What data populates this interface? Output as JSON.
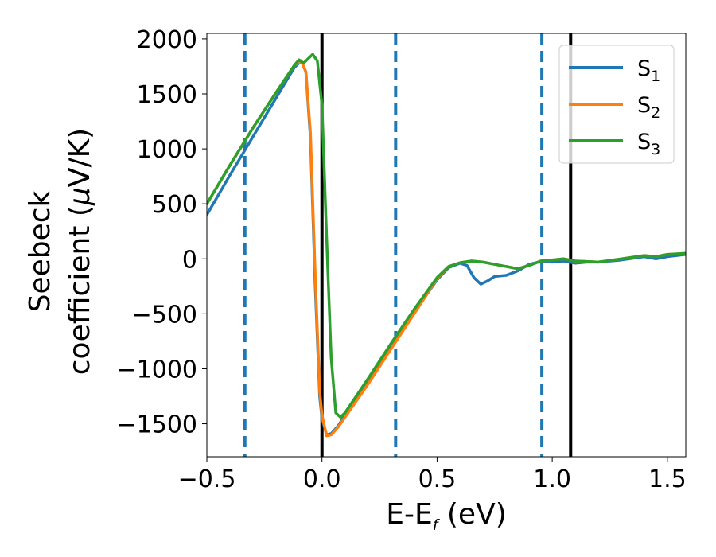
{
  "chart_data": {
    "type": "line",
    "xlabel": {
      "main": "E-E",
      "sub": "f",
      "unit": " (eV)"
    },
    "ylabel": {
      "line1": "Seebeck",
      "line2_prefix": "coefficient  (",
      "mu": "μ",
      "line2_suffix": "V/K)"
    },
    "xlim": [
      -0.5,
      1.58
    ],
    "ylim": [
      -1800,
      2050
    ],
    "xticks": [
      -0.5,
      0.0,
      0.5,
      1.0,
      1.5
    ],
    "xtick_labels": [
      "−0.5",
      "0.0",
      "0.5",
      "1.0",
      "1.5"
    ],
    "yticks": [
      -1500,
      -1000,
      -500,
      0,
      500,
      1000,
      1500,
      2000
    ],
    "ytick_labels": [
      "−1500",
      "−1000",
      "−500",
      "0",
      "500",
      "1000",
      "1500",
      "2000"
    ],
    "legend": {
      "placement": "top-right"
    },
    "vlines": [
      {
        "x": -0.335,
        "style": "dashed",
        "color": "#1f77b4"
      },
      {
        "x": 0.0,
        "style": "solid",
        "color": "#000000"
      },
      {
        "x": 0.32,
        "style": "dashed",
        "color": "#1f77b4"
      },
      {
        "x": 0.955,
        "style": "dashed",
        "color": "#1f77b4"
      },
      {
        "x": 1.08,
        "style": "solid",
        "color": "#000000"
      }
    ],
    "series": [
      {
        "name": "S",
        "sub": "1",
        "color": "#1f77b4",
        "points": [
          [
            -0.5,
            400
          ],
          [
            -0.4,
            760
          ],
          [
            -0.3,
            1110
          ],
          [
            -0.2,
            1460
          ],
          [
            -0.12,
            1740
          ],
          [
            -0.09,
            1800
          ],
          [
            -0.07,
            1700
          ],
          [
            -0.05,
            1100
          ],
          [
            -0.03,
            -200
          ],
          [
            -0.01,
            -1250
          ],
          [
            0.0,
            -1450
          ],
          [
            0.02,
            -1600
          ],
          [
            0.04,
            -1590
          ],
          [
            0.07,
            -1520
          ],
          [
            0.1,
            -1420
          ],
          [
            0.2,
            -1120
          ],
          [
            0.3,
            -810
          ],
          [
            0.4,
            -490
          ],
          [
            0.5,
            -190
          ],
          [
            0.55,
            -80
          ],
          [
            0.6,
            -40
          ],
          [
            0.63,
            -60
          ],
          [
            0.66,
            -170
          ],
          [
            0.69,
            -230
          ],
          [
            0.72,
            -200
          ],
          [
            0.75,
            -160
          ],
          [
            0.8,
            -150
          ],
          [
            0.85,
            -110
          ],
          [
            0.9,
            -50
          ],
          [
            0.95,
            -25
          ],
          [
            1.0,
            -30
          ],
          [
            1.05,
            -20
          ],
          [
            1.1,
            -40
          ],
          [
            1.15,
            -30
          ],
          [
            1.2,
            -30
          ],
          [
            1.3,
            -10
          ],
          [
            1.4,
            20
          ],
          [
            1.45,
            0
          ],
          [
            1.5,
            20
          ],
          [
            1.58,
            40
          ]
        ]
      },
      {
        "name": "S",
        "sub": "2",
        "color": "#ff7f0e",
        "points": [
          [
            -0.5,
            500
          ],
          [
            -0.4,
            850
          ],
          [
            -0.3,
            1190
          ],
          [
            -0.2,
            1510
          ],
          [
            -0.12,
            1760
          ],
          [
            -0.09,
            1800
          ],
          [
            -0.07,
            1700
          ],
          [
            -0.05,
            1150
          ],
          [
            -0.03,
            -100
          ],
          [
            -0.01,
            -1200
          ],
          [
            0.0,
            -1420
          ],
          [
            0.02,
            -1610
          ],
          [
            0.04,
            -1600
          ],
          [
            0.07,
            -1530
          ],
          [
            0.1,
            -1440
          ],
          [
            0.2,
            -1140
          ],
          [
            0.3,
            -820
          ],
          [
            0.4,
            -500
          ],
          [
            0.5,
            -180
          ],
          [
            0.55,
            -70
          ],
          [
            0.6,
            -35
          ],
          [
            0.65,
            -20
          ],
          [
            0.7,
            -30
          ],
          [
            0.75,
            -50
          ],
          [
            0.8,
            -70
          ],
          [
            0.85,
            -90
          ],
          [
            0.9,
            -60
          ],
          [
            0.95,
            -20
          ],
          [
            1.0,
            -10
          ],
          [
            1.05,
            0
          ],
          [
            1.1,
            -20
          ],
          [
            1.2,
            -30
          ],
          [
            1.3,
            0
          ],
          [
            1.4,
            30
          ],
          [
            1.45,
            20
          ],
          [
            1.5,
            40
          ],
          [
            1.58,
            50
          ]
        ]
      },
      {
        "name": "S",
        "sub": "3",
        "color": "#2ca02c",
        "points": [
          [
            -0.5,
            500
          ],
          [
            -0.4,
            850
          ],
          [
            -0.3,
            1190
          ],
          [
            -0.2,
            1510
          ],
          [
            -0.12,
            1760
          ],
          [
            -0.1,
            1810
          ],
          [
            -0.08,
            1780
          ],
          [
            -0.06,
            1820
          ],
          [
            -0.04,
            1860
          ],
          [
            -0.02,
            1800
          ],
          [
            0.0,
            1400
          ],
          [
            0.02,
            200
          ],
          [
            0.04,
            -900
          ],
          [
            0.06,
            -1400
          ],
          [
            0.08,
            -1440
          ],
          [
            0.1,
            -1400
          ],
          [
            0.2,
            -1090
          ],
          [
            0.3,
            -770
          ],
          [
            0.4,
            -460
          ],
          [
            0.5,
            -170
          ],
          [
            0.55,
            -70
          ],
          [
            0.6,
            -35
          ],
          [
            0.65,
            -20
          ],
          [
            0.7,
            -30
          ],
          [
            0.75,
            -50
          ],
          [
            0.8,
            -70
          ],
          [
            0.85,
            -90
          ],
          [
            0.9,
            -60
          ],
          [
            0.95,
            -20
          ],
          [
            1.0,
            -10
          ],
          [
            1.05,
            0
          ],
          [
            1.1,
            -20
          ],
          [
            1.2,
            -30
          ],
          [
            1.3,
            0
          ],
          [
            1.4,
            30
          ],
          [
            1.45,
            20
          ],
          [
            1.5,
            40
          ],
          [
            1.58,
            50
          ]
        ]
      }
    ]
  }
}
